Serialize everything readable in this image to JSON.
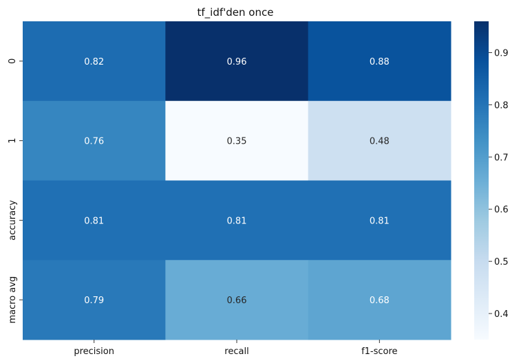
{
  "chart_data": {
    "type": "heatmap",
    "title": "tf_idf'den once",
    "x_categories": [
      "precision",
      "recall",
      "f1-score"
    ],
    "y_categories": [
      "0",
      "1",
      "accuracy",
      "macro avg"
    ],
    "values": [
      [
        0.82,
        0.96,
        0.88
      ],
      [
        0.76,
        0.35,
        0.48
      ],
      [
        0.81,
        0.81,
        0.81
      ],
      [
        0.79,
        0.66,
        0.68
      ]
    ],
    "annotations": [
      [
        "0.82",
        "0.96",
        "0.88"
      ],
      [
        "0.76",
        "0.35",
        "0.48"
      ],
      [
        "0.81",
        "0.81",
        "0.81"
      ],
      [
        "0.79",
        "0.66",
        "0.68"
      ]
    ],
    "colorbar": {
      "ticks": [
        "0.4",
        "0.5",
        "0.6",
        "0.7",
        "0.8",
        "0.9"
      ],
      "range": [
        0.35,
        0.96
      ],
      "colormap": "Blues"
    }
  }
}
